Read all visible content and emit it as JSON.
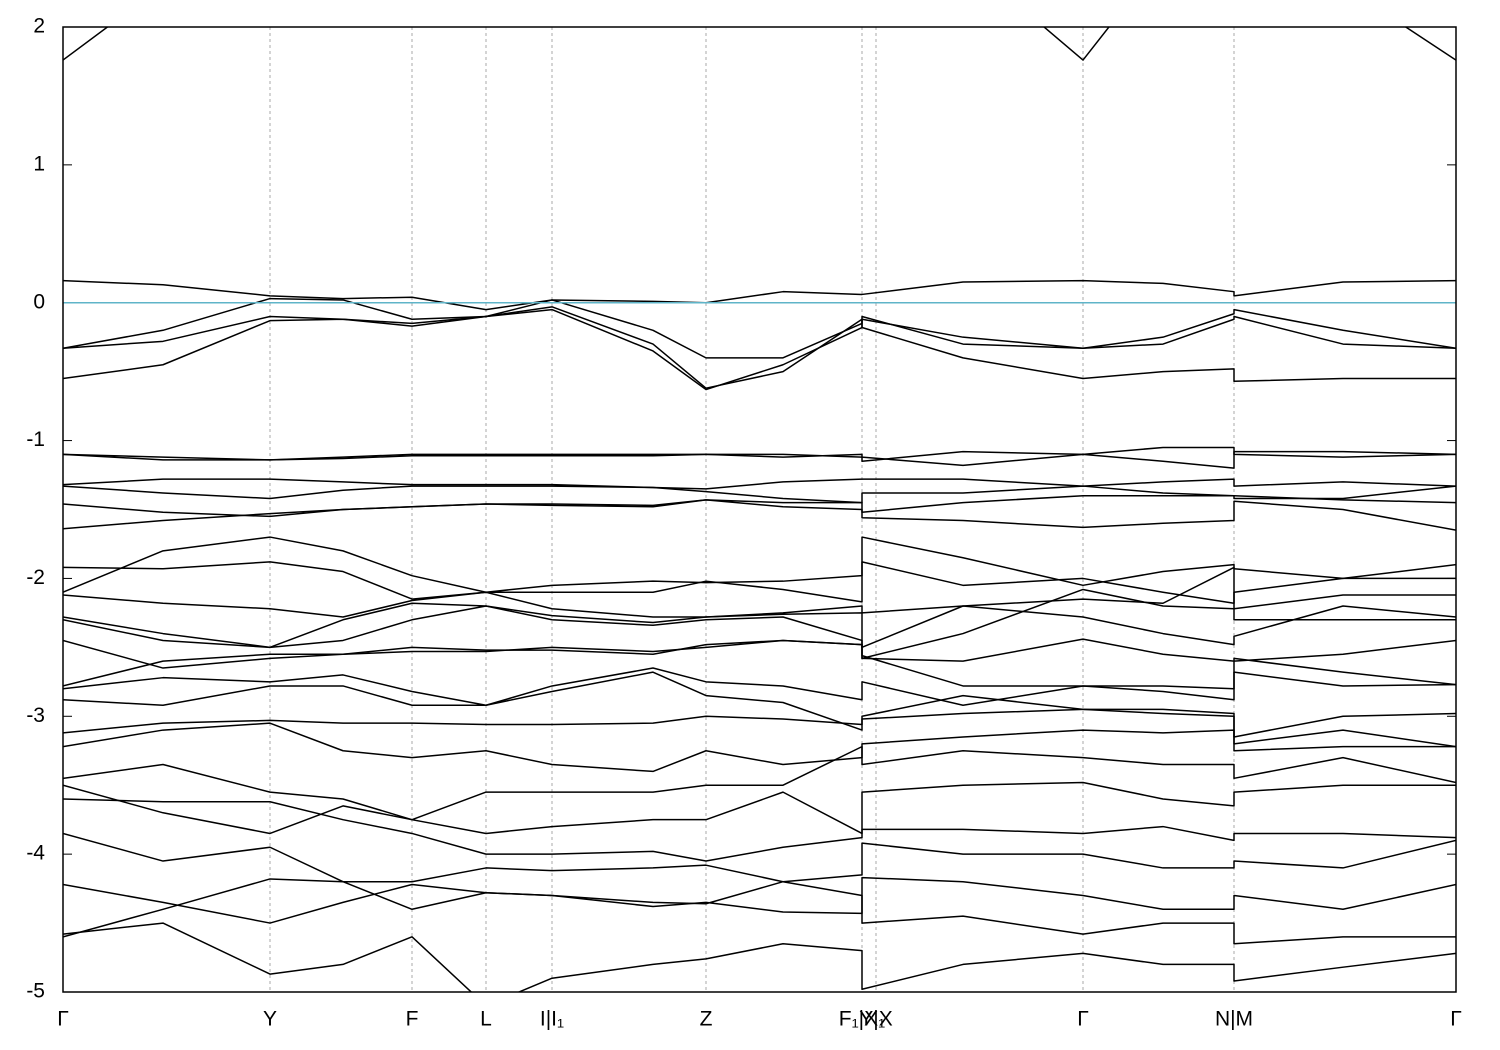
{
  "chart_data": {
    "type": "line",
    "x": [
      0,
      1.0,
      2.07,
      2.8,
      3.49,
      4.23,
      4.89,
      5.9,
      6.43,
      7.2,
      7.99,
      7.99,
      9.0,
      10.2,
      11.0,
      11.71,
      11.71,
      12.8,
      13.93
    ],
    "xlim": [
      0,
      13.93
    ],
    "xticks": [
      {
        "value": 0,
        "label": "Γ"
      },
      {
        "value": 2.07,
        "label": "Y"
      },
      {
        "value": 3.49,
        "label": "F"
      },
      {
        "value": 4.23,
        "label": "L"
      },
      {
        "value": 4.89,
        "label": "I|I₁"
      },
      {
        "value": 6.43,
        "label": "Z"
      },
      {
        "value": 7.99,
        "label": "F₁|X₁"
      },
      {
        "value": 8.13,
        "label": "Y|X"
      },
      {
        "value": 10.2,
        "label": "Γ"
      },
      {
        "value": 11.71,
        "label": "N|M"
      },
      {
        "value": 13.93,
        "label": "Γ"
      }
    ],
    "ylim": [
      -5,
      2
    ],
    "yticks": [
      -5,
      -4,
      -3,
      -2,
      -1,
      0,
      1,
      2
    ],
    "color": "#000000",
    "fermi_level": 0,
    "fermi_color": "#5fb4c8",
    "bands": [
      [
        1.76,
        2.3,
        null,
        null,
        null,
        null,
        null,
        null,
        null,
        null,
        null,
        null,
        2.5,
        1.76,
        2.5,
        null,
        null,
        2.3,
        1.76
      ],
      [
        0.16,
        0.13,
        0.05,
        0.03,
        0.04,
        -0.05,
        0.02,
        0.01,
        0.0,
        0.08,
        0.06,
        0.06,
        0.15,
        0.16,
        0.14,
        0.08,
        0.05,
        0.15,
        0.16
      ],
      [
        -0.33,
        -0.2,
        0.03,
        0.02,
        -0.12,
        -0.1,
        0.02,
        -0.2,
        -0.4,
        -0.4,
        -0.15,
        -0.12,
        -0.25,
        -0.33,
        -0.25,
        -0.08,
        -0.05,
        -0.2,
        -0.33
      ],
      [
        -0.33,
        -0.28,
        -0.1,
        -0.12,
        -0.17,
        -0.1,
        -0.05,
        -0.35,
        -0.63,
        -0.45,
        -0.18,
        -0.1,
        -0.3,
        -0.33,
        -0.3,
        -0.12,
        -0.1,
        -0.3,
        -0.33
      ],
      [
        -0.55,
        -0.45,
        -0.13,
        -0.12,
        -0.15,
        -0.1,
        -0.03,
        -0.3,
        -0.62,
        -0.5,
        -0.12,
        -0.18,
        -0.4,
        -0.55,
        -0.5,
        -0.48,
        -0.57,
        -0.55,
        -0.55
      ],
      [
        -1.1,
        -1.12,
        -1.14,
        -1.13,
        -1.11,
        -1.11,
        -1.11,
        -1.11,
        -1.1,
        -1.1,
        -1.12,
        -1.15,
        -1.08,
        -1.1,
        -1.05,
        -1.05,
        -1.1,
        -1.12,
        -1.1
      ],
      [
        -1.1,
        -1.14,
        -1.14,
        -1.12,
        -1.1,
        -1.1,
        -1.1,
        -1.1,
        -1.1,
        -1.12,
        -1.1,
        -1.12,
        -1.18,
        -1.1,
        -1.15,
        -1.2,
        -1.08,
        -1.08,
        -1.1
      ],
      [
        -1.32,
        -1.28,
        -1.28,
        -1.3,
        -1.32,
        -1.32,
        -1.32,
        -1.34,
        -1.35,
        -1.3,
        -1.28,
        -1.28,
        -1.28,
        -1.33,
        -1.3,
        -1.28,
        -1.33,
        -1.3,
        -1.33
      ],
      [
        -1.33,
        -1.38,
        -1.42,
        -1.36,
        -1.33,
        -1.33,
        -1.33,
        -1.34,
        -1.37,
        -1.42,
        -1.45,
        -1.38,
        -1.38,
        -1.33,
        -1.38,
        -1.4,
        -1.42,
        -1.42,
        -1.33
      ],
      [
        -1.46,
        -1.52,
        -1.55,
        -1.5,
        -1.48,
        -1.46,
        -1.47,
        -1.48,
        -1.43,
        -1.45,
        -1.45,
        -1.52,
        -1.45,
        -1.4,
        -1.4,
        -1.4,
        -1.4,
        -1.43,
        -1.45
      ],
      [
        -1.64,
        -1.58,
        -1.53,
        -1.5,
        -1.48,
        -1.46,
        -1.46,
        -1.47,
        -1.43,
        -1.48,
        -1.5,
        -1.56,
        -1.58,
        -1.63,
        -1.6,
        -1.58,
        -1.44,
        -1.5,
        -1.65
      ],
      [
        -2.1,
        -1.8,
        -1.7,
        -1.8,
        -1.98,
        -2.1,
        -2.05,
        -2.02,
        -2.03,
        -2.02,
        -1.98,
        -1.7,
        -1.85,
        -2.05,
        -1.95,
        -1.9,
        -1.93,
        -2.0,
        -1.9
      ],
      [
        -1.92,
        -1.93,
        -1.88,
        -1.95,
        -2.15,
        -2.1,
        -2.1,
        -2.1,
        -2.02,
        -2.08,
        -2.17,
        -1.88,
        -2.05,
        -2.0,
        -2.1,
        -2.18,
        -2.1,
        -2.0,
        -2.0
      ],
      [
        -2.12,
        -2.18,
        -2.22,
        -2.28,
        -2.16,
        -2.1,
        -2.22,
        -2.28,
        -2.28,
        -2.25,
        -2.2,
        -2.25,
        -2.2,
        -2.15,
        -2.18,
        -1.92,
        -2.22,
        -2.12,
        -2.12
      ],
      [
        -2.28,
        -2.4,
        -2.5,
        -2.3,
        -2.18,
        -2.2,
        -2.27,
        -2.32,
        -2.28,
        -2.26,
        -2.25,
        -2.5,
        -2.2,
        -2.28,
        -2.4,
        -2.48,
        -2.42,
        -2.2,
        -2.28
      ],
      [
        -2.3,
        -2.45,
        -2.5,
        -2.45,
        -2.3,
        -2.2,
        -2.3,
        -2.34,
        -2.3,
        -2.28,
        -2.45,
        -2.58,
        -2.4,
        -2.08,
        -2.2,
        -2.22,
        -2.3,
        -2.3,
        -2.3
      ],
      [
        -2.45,
        -2.65,
        -2.58,
        -2.55,
        -2.5,
        -2.52,
        -2.52,
        -2.55,
        -2.48,
        -2.45,
        -2.48,
        -2.58,
        -2.6,
        -2.44,
        -2.55,
        -2.6,
        -2.6,
        -2.55,
        -2.45
      ],
      [
        -2.78,
        -2.6,
        -2.55,
        -2.55,
        -2.53,
        -2.53,
        -2.5,
        -2.53,
        -2.5,
        -2.45,
        -2.48,
        -2.56,
        -2.78,
        -2.78,
        -2.78,
        -2.8,
        -2.58,
        -2.68,
        -2.77
      ],
      [
        -2.8,
        -2.72,
        -2.75,
        -2.7,
        -2.82,
        -2.92,
        -2.78,
        -2.65,
        -2.75,
        -2.78,
        -2.88,
        -2.75,
        -2.92,
        -2.78,
        -2.82,
        -2.88,
        -2.68,
        -2.78,
        -2.77
      ],
      [
        -2.88,
        -2.92,
        -2.78,
        -2.78,
        -2.92,
        -2.92,
        -2.82,
        -2.68,
        -2.85,
        -2.9,
        -3.1,
        -3.0,
        -2.85,
        -2.95,
        -2.98,
        -3.0,
        -3.15,
        -3.0,
        -2.98
      ],
      [
        -3.12,
        -3.05,
        -3.03,
        -3.05,
        -3.05,
        -3.06,
        -3.06,
        -3.05,
        -3.0,
        -3.02,
        -3.06,
        -3.02,
        -2.98,
        -2.95,
        -2.95,
        -2.98,
        -3.2,
        -3.1,
        -3.22
      ],
      [
        -3.22,
        -3.1,
        -3.05,
        -3.25,
        -3.3,
        -3.25,
        -3.35,
        -3.4,
        -3.25,
        -3.35,
        -3.3,
        -3.2,
        -3.15,
        -3.1,
        -3.12,
        -3.1,
        -3.25,
        -3.22,
        -3.22
      ],
      [
        -3.45,
        -3.35,
        -3.55,
        -3.6,
        -3.75,
        -3.55,
        -3.55,
        -3.55,
        -3.5,
        -3.5,
        -3.22,
        -3.35,
        -3.25,
        -3.3,
        -3.35,
        -3.35,
        -3.45,
        -3.3,
        -3.48
      ],
      [
        -3.5,
        -3.7,
        -3.85,
        -3.65,
        -3.75,
        -3.85,
        -3.8,
        -3.75,
        -3.75,
        -3.55,
        -3.85,
        -3.55,
        -3.5,
        -3.48,
        -3.6,
        -3.65,
        -3.55,
        -3.5,
        -3.5
      ],
      [
        -3.6,
        -3.62,
        -3.62,
        -3.75,
        -3.85,
        -4.0,
        -4.0,
        -3.98,
        -4.05,
        -3.95,
        -3.88,
        -3.82,
        -3.82,
        -3.85,
        -3.8,
        -3.9,
        -3.85,
        -3.85,
        -3.88
      ],
      [
        -3.85,
        -4.05,
        -3.95,
        -4.2,
        -4.2,
        -4.1,
        -4.12,
        -4.1,
        -4.08,
        -4.2,
        -4.15,
        -3.92,
        -4.0,
        -4.0,
        -4.1,
        -4.1,
        -4.05,
        -4.1,
        -3.9
      ],
      [
        -4.22,
        -4.35,
        -4.5,
        -4.35,
        -4.22,
        -4.28,
        -4.3,
        -4.38,
        -4.35,
        -4.42,
        -4.43,
        -4.17,
        -4.2,
        -4.3,
        -4.4,
        -4.4,
        -4.3,
        -4.4,
        -4.22
      ],
      [
        -4.6,
        -4.4,
        -4.18,
        -4.2,
        -4.4,
        -4.28,
        -4.3,
        -4.35,
        -4.36,
        -4.2,
        -4.3,
        -4.5,
        -4.45,
        -4.58,
        -4.5,
        -4.5,
        -4.65,
        -4.6,
        -4.6
      ],
      [
        -4.58,
        -4.5,
        -4.87,
        -4.8,
        -4.6,
        -5.1,
        -4.9,
        -4.8,
        -4.76,
        -4.65,
        -4.7,
        -4.98,
        -4.8,
        -4.72,
        -4.8,
        -4.8,
        -4.92,
        -4.82,
        -4.72
      ]
    ]
  }
}
